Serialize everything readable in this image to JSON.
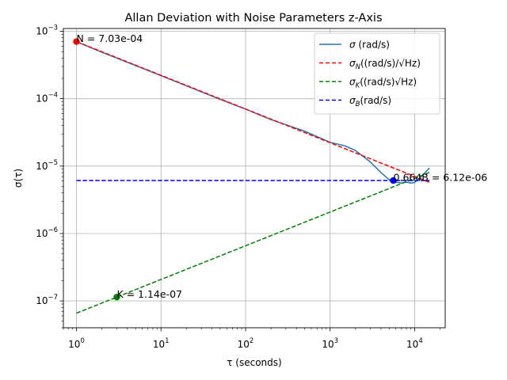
{
  "chart_data": {
    "type": "line",
    "title": "Allan Deviation with Noise Parameters z-Axis",
    "xlabel": "τ (seconds)",
    "ylabel": "σ(τ)",
    "x_scale": "log",
    "y_scale": "log",
    "xlim": [
      0.7,
      23000
    ],
    "ylim": [
      4e-08,
      0.0011
    ],
    "grid": true,
    "legend_position": "top-right",
    "x_ticks": [
      {
        "value": 1,
        "base": "10",
        "exp": "0"
      },
      {
        "value": 10,
        "base": "10",
        "exp": "1"
      },
      {
        "value": 100,
        "base": "10",
        "exp": "2"
      },
      {
        "value": 1000,
        "base": "10",
        "exp": "3"
      },
      {
        "value": 10000,
        "base": "10",
        "exp": "4"
      }
    ],
    "y_ticks": [
      {
        "value": 1e-07,
        "base": "10",
        "exp": "−7"
      },
      {
        "value": 1e-06,
        "base": "10",
        "exp": "−6"
      },
      {
        "value": 1e-05,
        "base": "10",
        "exp": "−5"
      },
      {
        "value": 0.0001,
        "base": "10",
        "exp": "−4"
      },
      {
        "value": 0.001,
        "base": "10",
        "exp": "−3"
      }
    ],
    "series": [
      {
        "name": "σ (rad/s)",
        "color": "#1f77b4",
        "style": "solid",
        "x": [
          1,
          2,
          5,
          10,
          20,
          50,
          100,
          200,
          500,
          1000,
          1500,
          2000,
          3000,
          4000,
          5000,
          6000,
          7000,
          8000,
          9000,
          10000,
          12000,
          15000
        ],
        "y": [
          0.0007,
          0.00049,
          0.00031,
          0.00022,
          0.000155,
          9.8e-05,
          7e-05,
          4.9e-05,
          3.3e-05,
          2.25e-05,
          2e-05,
          1.7e-05,
          1.15e-05,
          8e-06,
          6.3e-06,
          5.8e-06,
          5.6e-06,
          5.8e-06,
          5.6e-06,
          5.7e-06,
          7e-06,
          9.4e-06
        ]
      },
      {
        "name": "σN((rad/s)/√Hz)",
        "color": "#ff0000",
        "style": "dashed",
        "x": [
          1,
          15000
        ],
        "y": [
          0.000703,
          5.74e-06
        ]
      },
      {
        "name": "σK((rad/s)√Hz)",
        "color": "#008000",
        "style": "dashed",
        "x": [
          1,
          15000
        ],
        "y": [
          6.58e-08,
          8.06e-06
        ]
      },
      {
        "name": "σB(rad/s)",
        "color": "#0000ff",
        "style": "dashed",
        "x": [
          1,
          15000
        ],
        "y": [
          6.12e-06,
          6.12e-06
        ]
      }
    ],
    "markers": [
      {
        "x": 1,
        "y": 0.000703,
        "color": "#ff0000",
        "label": "N = 7.03e-04"
      },
      {
        "x": 3,
        "y": 1.14e-07,
        "color": "#008000",
        "label": "K = 1.14e-07"
      },
      {
        "x": 5600,
        "y": 6.12e-06,
        "color": "#0000ff",
        "label": "0.664B = 6.12e-06"
      }
    ]
  },
  "legend": {
    "items": [
      {
        "sym": "σ",
        "sub": "",
        "rest": " (rad/s)",
        "color": "#1f77b4",
        "dash": ""
      },
      {
        "sym": "σ",
        "sub": "N",
        "rest": "((rad/s)/√Hz)",
        "color": "#ff0000",
        "dash": "5,3"
      },
      {
        "sym": "σ",
        "sub": "K",
        "rest": "((rad/s)√Hz)",
        "color": "#008000",
        "dash": "5,3"
      },
      {
        "sym": "σ",
        "sub": "B",
        "rest": "(rad/s)",
        "color": "#0000ff",
        "dash": "5,3"
      }
    ]
  }
}
